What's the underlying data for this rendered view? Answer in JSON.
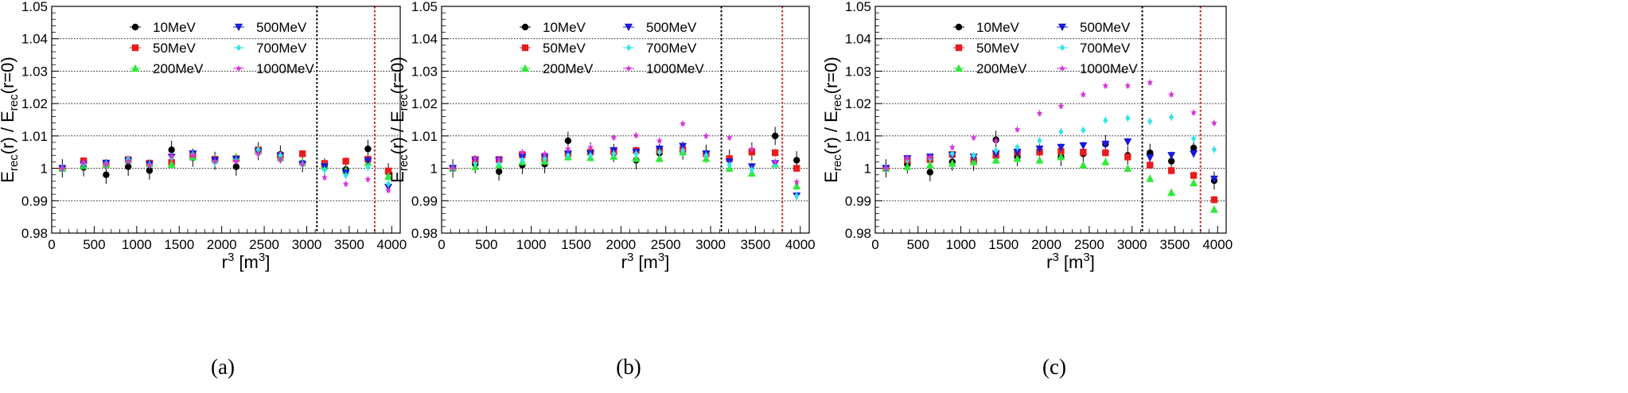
{
  "colors": {
    "10MeV": "#000000",
    "50MeV": "#e81c1c",
    "200MeV": "#2ee83a",
    "500MeV": "#1a1ad6",
    "700MeV": "#33e6e6",
    "1000MeV": "#d535d8",
    "vline_black": "#000000",
    "vline_red": "#cc2222"
  },
  "chart_data": [
    {
      "type": "scatter",
      "caption": "(a)",
      "ylabel_main": "E",
      "ylabel_sub1": "rec",
      "ylabel_mid": "(r) / E",
      "ylabel_sub2": "rec",
      "ylabel_end": "(r=0)",
      "xlabel_main": "r",
      "xlabel_sup": "3",
      "xlabel_unit": " [m",
      "xlabel_unit_sup": "3",
      "xlabel_end": "]",
      "xlim": [
        0,
        4100
      ],
      "ylim": [
        0.98,
        1.05
      ],
      "xticks": [
        "0",
        "500",
        "1000",
        "1500",
        "2000",
        "2500",
        "3000",
        "3500",
        "4000"
      ],
      "yticks": [
        "0.98",
        "0.99",
        "1",
        "1.01",
        "1.02",
        "1.03",
        "1.04",
        "1.05"
      ],
      "vlines": [
        {
          "x": 3120,
          "color": "vline_black"
        },
        {
          "x": 3800,
          "color": "vline_red"
        }
      ],
      "legend": [
        "10MeV",
        "50MeV",
        "200MeV",
        "500MeV",
        "700MeV",
        "1000MeV"
      ],
      "x": [
        125,
        375,
        640,
        900,
        1150,
        1410,
        1660,
        1920,
        2170,
        2430,
        2690,
        2950,
        3210,
        3460,
        3720,
        3960
      ],
      "series": [
        {
          "name": "10MeV",
          "marker": "circle",
          "err": 0.0028,
          "values": [
            1.0,
            1.0003,
            0.998,
            1.0005,
            0.9993,
            1.0057,
            1.0033,
            1.0023,
            1.0005,
            1.0053,
            1.0043,
            1.0016,
            1.0003,
            0.9996,
            1.006,
            0.9988
          ]
        },
        {
          "name": "50MeV",
          "marker": "square",
          "err": 0.0012,
          "values": [
            1.0,
            1.0023,
            1.0016,
            1.0027,
            1.0016,
            1.0018,
            1.0042,
            1.0028,
            1.003,
            1.0057,
            1.004,
            1.0045,
            1.0015,
            1.0022,
            1.0028,
            0.9992
          ]
        },
        {
          "name": "200MeV",
          "marker": "triangle-up",
          "err": 0.0012,
          "values": [
            1.0,
            1.0008,
            1.0012,
            1.0025,
            1.0014,
            1.0012,
            1.0035,
            1.0028,
            1.0035,
            1.0053,
            1.0033,
            1.0018,
            1.0008,
            0.9993,
            1.0018,
            0.9975
          ]
        },
        {
          "name": "500MeV",
          "marker": "triangle-down",
          "err": 0.0012,
          "values": [
            1.0,
            1.0012,
            1.0016,
            1.0023,
            1.0012,
            1.0035,
            1.0045,
            1.0025,
            1.0028,
            1.0052,
            1.0038,
            1.0013,
            1.0005,
            0.9985,
            1.0023,
            0.9942
          ]
        },
        {
          "name": "700MeV",
          "marker": "diamond",
          "err": 0.0012,
          "values": [
            1.0,
            1.0014,
            1.0014,
            1.0028,
            1.0011,
            1.0033,
            1.0043,
            1.0018,
            1.0025,
            1.0057,
            1.004,
            1.0013,
            0.9995,
            0.9978,
            1.0003,
            0.9952
          ]
        },
        {
          "name": "1000MeV",
          "marker": "star",
          "err": 0.001,
          "values": [
            1.0,
            1.0018,
            1.0012,
            1.0022,
            1.0009,
            1.0038,
            1.004,
            1.0022,
            1.0022,
            1.0045,
            1.0026,
            1.0013,
            0.9972,
            0.9952,
            0.9966,
            0.9932
          ]
        }
      ]
    },
    {
      "type": "scatter",
      "caption": "(b)",
      "ylabel_main": "E",
      "ylabel_sub1": "rec",
      "ylabel_mid": "(r) / E",
      "ylabel_sub2": "rec",
      "ylabel_end": "(r=0)",
      "xlabel_main": "r",
      "xlabel_sup": "3",
      "xlabel_unit": " [m",
      "xlabel_unit_sup": "3",
      "xlabel_end": "]",
      "xlim": [
        0,
        4100
      ],
      "ylim": [
        0.98,
        1.05
      ],
      "xticks": [
        "0",
        "500",
        "1000",
        "1500",
        "2000",
        "2500",
        "3000",
        "3500",
        "4000"
      ],
      "yticks": [
        "0.98",
        "0.99",
        "1",
        "1.01",
        "1.02",
        "1.03",
        "1.04",
        "1.05"
      ],
      "vlines": [
        {
          "x": 3120,
          "color": "vline_black"
        },
        {
          "x": 3800,
          "color": "vline_red"
        }
      ],
      "legend": [
        "10MeV",
        "50MeV",
        "200MeV",
        "500MeV",
        "700MeV",
        "1000MeV"
      ],
      "x": [
        125,
        375,
        640,
        900,
        1150,
        1410,
        1660,
        1920,
        2170,
        2430,
        2690,
        2950,
        3210,
        3460,
        3720,
        3960
      ],
      "series": [
        {
          "name": "10MeV",
          "marker": "circle",
          "err": 0.0028,
          "values": [
            1.0,
            1.0013,
            0.999,
            1.001,
            1.0013,
            1.0085,
            1.0052,
            1.0047,
            1.0025,
            1.0047,
            1.0055,
            1.0045,
            1.003,
            1.0052,
            1.01,
            1.0025
          ]
        },
        {
          "name": "50MeV",
          "marker": "square",
          "err": 0.0012,
          "values": [
            1.0,
            1.0027,
            1.0027,
            1.0042,
            1.003,
            1.0045,
            1.005,
            1.0052,
            1.0055,
            1.0055,
            1.0058,
            1.0045,
            1.003,
            1.005,
            1.0048,
            1.0
          ]
        },
        {
          "name": "200MeV",
          "marker": "triangle-up",
          "err": 0.0012,
          "values": [
            1.0,
            1.0005,
            1.001,
            1.002,
            1.0022,
            1.0035,
            1.0033,
            1.0037,
            1.003,
            1.003,
            1.005,
            1.003,
            1.0,
            0.9985,
            1.0013,
            0.9945
          ]
        },
        {
          "name": "500MeV",
          "marker": "triangle-down",
          "err": 0.0012,
          "values": [
            1.0,
            1.0025,
            1.0025,
            1.0035,
            1.0035,
            1.0045,
            1.0045,
            1.0055,
            1.005,
            1.006,
            1.0068,
            1.0045,
            1.002,
            1.0005,
            1.0015,
            0.9915
          ]
        },
        {
          "name": "700MeV",
          "marker": "diamond",
          "err": 0.0012,
          "values": [
            1.0,
            1.0015,
            1.0015,
            1.0025,
            1.003,
            1.004,
            1.004,
            1.0045,
            1.0045,
            1.005,
            1.0055,
            1.004,
            1.001,
            0.9995,
            1.001,
            0.9915
          ]
        },
        {
          "name": "1000MeV",
          "marker": "star",
          "err": 0.001,
          "values": [
            1.0,
            1.003,
            1.0028,
            1.005,
            1.0045,
            1.006,
            1.0065,
            1.0095,
            1.0102,
            1.0085,
            1.0138,
            1.01,
            1.0095,
            1.006,
            1.002,
            0.9958
          ]
        }
      ]
    },
    {
      "type": "scatter",
      "caption": "(c)",
      "ylabel_main": "E",
      "ylabel_sub1": "rec",
      "ylabel_mid": "(r) / E",
      "ylabel_sub2": "rec",
      "ylabel_end": "(r=0)",
      "xlabel_main": "r",
      "xlabel_sup": "3",
      "xlabel_unit": " [m",
      "xlabel_unit_sup": "3",
      "xlabel_end": "]",
      "xlim": [
        0,
        4100
      ],
      "ylim": [
        0.98,
        1.05
      ],
      "xticks": [
        "0",
        "500",
        "1000",
        "1500",
        "2000",
        "2500",
        "3000",
        "3500",
        "4000"
      ],
      "yticks": [
        "0.98",
        "0.99",
        "1",
        "1.01",
        "1.02",
        "1.03",
        "1.04",
        "1.05"
      ],
      "vlines": [
        {
          "x": 3120,
          "color": "vline_black"
        },
        {
          "x": 3800,
          "color": "vline_red"
        }
      ],
      "legend": [
        "10MeV",
        "50MeV",
        "200MeV",
        "500MeV",
        "700MeV",
        "1000MeV"
      ],
      "x": [
        125,
        375,
        640,
        900,
        1150,
        1410,
        1660,
        1920,
        2170,
        2430,
        2690,
        2950,
        3210,
        3460,
        3720,
        3960
      ],
      "series": [
        {
          "name": "10MeV",
          "marker": "circle",
          "err": 0.0028,
          "values": [
            1.0,
            1.0012,
            0.9988,
            1.002,
            1.002,
            1.0088,
            1.0035,
            1.005,
            1.0035,
            1.0045,
            1.0075,
            1.004,
            1.0048,
            1.0022,
            1.0063,
            0.9962
          ]
        },
        {
          "name": "50MeV",
          "marker": "square",
          "err": 0.0012,
          "values": [
            1.0,
            1.0025,
            1.0027,
            1.0043,
            1.0025,
            1.004,
            1.005,
            1.005,
            1.0052,
            1.005,
            1.0048,
            1.0035,
            1.001,
            0.9993,
            0.9978,
            0.9903
          ]
        },
        {
          "name": "200MeV",
          "marker": "triangle-up",
          "err": 0.0012,
          "values": [
            1.0,
            1.0005,
            1.001,
            1.0015,
            1.002,
            1.0025,
            1.003,
            1.0025,
            1.0035,
            1.001,
            1.002,
            1.0,
            0.9968,
            0.9925,
            0.9955,
            0.9873
          ]
        },
        {
          "name": "500MeV",
          "marker": "triangle-down",
          "err": 0.0012,
          "values": [
            1.0,
            1.003,
            1.0035,
            1.004,
            1.0035,
            1.0045,
            1.005,
            1.006,
            1.0065,
            1.007,
            1.0075,
            1.0082,
            1.0033,
            1.004,
            1.0045,
            0.9967
          ]
        },
        {
          "name": "700MeV",
          "marker": "diamond",
          "err": 0.0012,
          "values": [
            1.0,
            1.0025,
            1.003,
            1.0045,
            1.004,
            1.0055,
            1.0065,
            1.0085,
            1.0113,
            1.0118,
            1.0148,
            1.0155,
            1.0145,
            1.0158,
            1.0092,
            1.0058
          ]
        },
        {
          "name": "1000MeV",
          "marker": "star",
          "err": 0.001,
          "values": [
            1.0,
            1.0032,
            1.0035,
            1.0065,
            1.0095,
            1.0085,
            1.012,
            1.017,
            1.0192,
            1.0228,
            1.0255,
            1.0255,
            1.0265,
            1.0228,
            1.0172,
            1.014
          ]
        }
      ]
    }
  ]
}
